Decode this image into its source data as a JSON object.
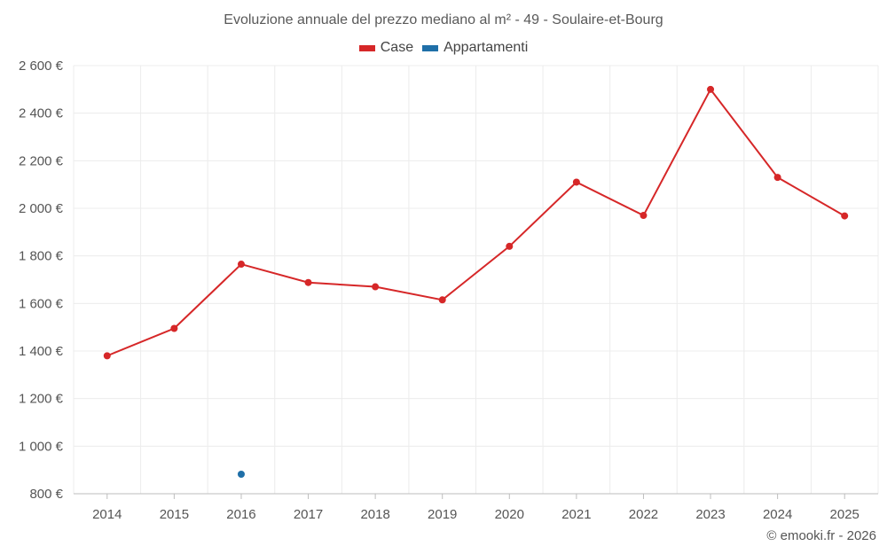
{
  "colors": {
    "case": "#d62728",
    "appartamenti": "#1f6fa8",
    "grid": "#ececec",
    "axis": "#bdbdbd"
  },
  "chart_data": {
    "type": "line",
    "title": "Evoluzione annuale del prezzo mediano al m² - 49 - Soulaire-et-Bourg",
    "xlabel": "",
    "ylabel": "",
    "categories": [
      "2014",
      "2015",
      "2016",
      "2017",
      "2018",
      "2019",
      "2020",
      "2021",
      "2022",
      "2023",
      "2024",
      "2025"
    ],
    "ylim": [
      800,
      2600
    ],
    "yticks": [
      800,
      1000,
      1200,
      1400,
      1600,
      1800,
      2000,
      2200,
      2400,
      2600
    ],
    "ytick_labels": [
      "800 €",
      "1 000 €",
      "1 200 €",
      "1 400 €",
      "1 600 €",
      "1 800 €",
      "2 000 €",
      "2 200 €",
      "2 400 €",
      "2 600 €"
    ],
    "legend_position": "top-center",
    "grid": true,
    "series": [
      {
        "name": "Case",
        "color_key": "case",
        "values": [
          1380,
          1495,
          1765,
          1688,
          1670,
          1615,
          1840,
          2110,
          1970,
          2500,
          2130,
          1968
        ]
      },
      {
        "name": "Appartamenti",
        "color_key": "appartamenti",
        "values": [
          null,
          null,
          882,
          null,
          null,
          null,
          null,
          null,
          null,
          null,
          null,
          null
        ]
      }
    ]
  },
  "credit": "© emooki.fr - 2026"
}
